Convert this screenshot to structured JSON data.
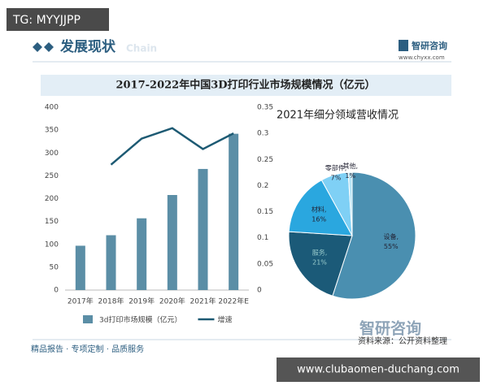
{
  "page": {
    "overlay_top": "TG: MYYJJPP",
    "section": "发展现状",
    "section_en": "Chain",
    "logo": "智研咨询",
    "logo_url": "www.chyxx.com",
    "footer_left": "精品报告 · 专项定制 · 品质服务",
    "footer_logo": "智研咨询",
    "source": "资料来源：公开资料整理",
    "overlay_bottom": "www.clubaomen-duchang.com"
  },
  "chart_data": [
    {
      "type": "bar",
      "title": "2017-2022年中国3D打印行业市场规模情况（亿元）",
      "categories": [
        "2017年",
        "2018年",
        "2019年",
        "2020年",
        "2021年",
        "2022年E"
      ],
      "series": [
        {
          "name": "3d打印市场规模（亿元）",
          "color": "#5b8ea6",
          "kind": "bar",
          "values": [
            97,
            120,
            157,
            208,
            265,
            342
          ]
        },
        {
          "name": "增速",
          "color": "#1d5a73",
          "kind": "line",
          "axis": "y2",
          "values": [
            null,
            0.24,
            0.29,
            0.31,
            0.27,
            0.3
          ]
        }
      ],
      "ylim": [
        0,
        400
      ],
      "yticks": [
        0,
        50,
        100,
        150,
        200,
        250,
        300,
        350,
        400
      ],
      "y2lim": [
        0,
        0.35
      ],
      "y2ticks": [
        0,
        0.05,
        0.1,
        0.15,
        0.2,
        0.25,
        0.3,
        0.35
      ]
    },
    {
      "type": "pie",
      "title": "2021年细分领域营收情况",
      "categories": [
        "设备,",
        "服务,",
        "材料,",
        "零部件,",
        "其他,"
      ],
      "values": [
        55,
        21,
        16,
        7,
        1
      ],
      "value_labels": [
        "55%",
        "21%",
        "16%",
        "7%",
        "1%"
      ],
      "colors": [
        "#4a8fb0",
        "#1b5a78",
        "#2aa7df",
        "#7fd0f5",
        "#b8e4f5"
      ]
    }
  ]
}
